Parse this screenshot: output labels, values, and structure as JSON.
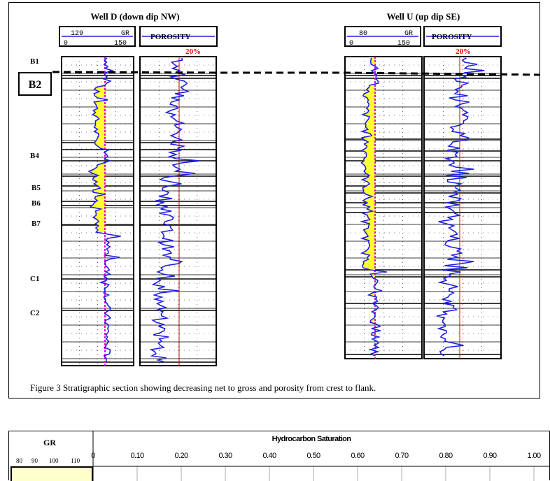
{
  "figure3": {
    "well_d": {
      "title": "Well D (down dip NW)",
      "gr_value": "129",
      "gr_mnemonic": "GR",
      "gr_min": "0",
      "gr_max": "150",
      "porosity_label": "POROSITY",
      "porosity_marker": "20%"
    },
    "well_u": {
      "title": "Well U (up dip SE)",
      "gr_value": "80",
      "gr_mnemonic": "GR",
      "gr_min": "0",
      "gr_max": "150",
      "porosity_label": "POROSITY",
      "porosity_marker": "20%"
    },
    "markers": [
      "B1",
      "B2",
      "B4",
      "B5",
      "B6",
      "B7",
      "C1",
      "C2"
    ],
    "caption": "Figure 3 Stratigraphic section showing decreasing net to gross and porosity from crest to flank.",
    "colors": {
      "gr_curve": "#1f1fe0",
      "sand_fill": "#ffff33",
      "cutoff": "#e000e0",
      "porosity_cutoff": "#e00000"
    }
  },
  "figure4": {
    "gr_title": "GR",
    "gr_ticks": [
      "80",
      "90",
      "100",
      "110"
    ],
    "hs_title": "Hydrocarbon Saturation",
    "hs_ticks": [
      "0",
      "0.10",
      "0.20",
      "0.30",
      "0.40",
      "0.50",
      "0.60",
      "0.70",
      "0.80",
      "0.90",
      "1.00"
    ],
    "colors": {
      "gr_fill": "#ffffcc"
    }
  }
}
